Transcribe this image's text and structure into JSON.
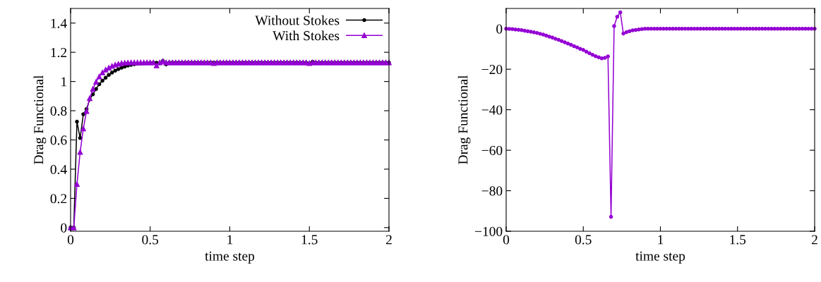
{
  "chart_data": [
    {
      "type": "line",
      "xlabel": "time step",
      "ylabel": "Drag Functional",
      "xlim": [
        0,
        2
      ],
      "ylim": [
        -0.025,
        1.5
      ],
      "yticks": [
        0,
        0.2,
        0.4,
        0.6,
        0.8,
        1,
        1.2,
        1.4
      ],
      "grid": false,
      "legend": "top right",
      "xticks": [
        0,
        0.5,
        1,
        1.5,
        2
      ],
      "x": [
        0,
        0.02,
        0.04,
        0.06,
        0.08,
        0.1,
        0.12,
        0.14,
        0.16,
        0.18,
        0.2,
        0.22,
        0.24,
        0.26,
        0.28,
        0.3,
        0.32,
        0.34,
        0.36,
        0.38,
        0.4,
        0.42,
        0.44,
        0.46,
        0.48,
        0.5,
        0.52,
        0.54,
        0.56,
        0.58,
        0.6,
        0.62,
        0.64,
        0.66,
        0.68,
        0.7,
        0.72,
        0.74,
        0.76,
        0.78,
        0.8,
        0.82,
        0.84,
        0.86,
        0.88,
        0.9,
        0.92,
        0.94,
        0.96,
        0.98,
        1,
        1.02,
        1.04,
        1.06,
        1.08,
        1.1,
        1.12,
        1.14,
        1.16,
        1.18,
        1.2,
        1.22,
        1.24,
        1.26,
        1.28,
        1.3,
        1.32,
        1.34,
        1.36,
        1.38,
        1.4,
        1.42,
        1.44,
        1.46,
        1.48,
        1.5,
        1.52,
        1.54,
        1.56,
        1.58,
        1.6,
        1.62,
        1.64,
        1.66,
        1.68,
        1.7,
        1.72,
        1.74,
        1.76,
        1.78,
        1.8,
        1.82,
        1.84,
        1.86,
        1.88,
        1.9,
        1.92,
        1.94,
        1.96,
        1.98,
        2
      ],
      "series": [
        {
          "name": "Without Stokes",
          "color": "#000000",
          "marker": "circle",
          "line_style": "solid",
          "values": [
            0,
            0,
            0.725,
            0.613,
            0.776,
            0.811,
            0.877,
            0.912,
            0.949,
            0.981,
            1.005,
            1.026,
            1.045,
            1.061,
            1.074,
            1.085,
            1.094,
            1.102,
            1.109,
            1.114,
            1.118,
            1.122,
            1.123,
            1.125,
            1.126,
            1.127,
            1.128,
            1.128,
            1.125,
            1.141,
            1.117,
            1.13,
            1.13,
            1.13,
            1.13,
            1.13,
            1.13,
            1.13,
            1.13,
            1.13,
            1.13,
            1.13,
            1.13,
            1.13,
            1.13,
            1.13,
            1.13,
            1.13,
            1.13,
            1.13,
            1.13,
            1.13,
            1.13,
            1.13,
            1.13,
            1.13,
            1.13,
            1.13,
            1.13,
            1.13,
            1.13,
            1.13,
            1.13,
            1.13,
            1.13,
            1.13,
            1.13,
            1.13,
            1.13,
            1.13,
            1.13,
            1.13,
            1.13,
            1.13,
            1.13,
            1.125,
            1.135,
            1.13,
            1.13,
            1.13,
            1.13,
            1.13,
            1.13,
            1.13,
            1.13,
            1.13,
            1.13,
            1.13,
            1.13,
            1.13,
            1.13,
            1.13,
            1.13,
            1.13,
            1.13,
            1.13,
            1.13,
            1.13,
            1.13,
            1.13,
            1.13
          ]
        },
        {
          "name": "With Stokes",
          "color": "#9400d3",
          "marker": "triangle",
          "line_style": "solid",
          "values": [
            0,
            0,
            0.298,
            0.517,
            0.677,
            0.797,
            0.885,
            0.949,
            0.997,
            1.034,
            1.061,
            1.08,
            1.094,
            1.106,
            1.114,
            1.12,
            1.125,
            1.128,
            1.129,
            1.13,
            1.13,
            1.13,
            1.13,
            1.13,
            1.13,
            1.13,
            1.13,
            1.109,
            1.13,
            1.138,
            1.13,
            1.13,
            1.13,
            1.13,
            1.13,
            1.13,
            1.13,
            1.13,
            1.13,
            1.13,
            1.13,
            1.13,
            1.13,
            1.13,
            1.13,
            1.125,
            1.13,
            1.13,
            1.13,
            1.13,
            1.13,
            1.13,
            1.13,
            1.13,
            1.13,
            1.13,
            1.13,
            1.13,
            1.13,
            1.13,
            1.13,
            1.13,
            1.13,
            1.13,
            1.13,
            1.13,
            1.13,
            1.13,
            1.13,
            1.13,
            1.13,
            1.13,
            1.13,
            1.13,
            1.13,
            1.125,
            1.13,
            1.13,
            1.13,
            1.13,
            1.13,
            1.13,
            1.13,
            1.13,
            1.13,
            1.13,
            1.13,
            1.13,
            1.13,
            1.13,
            1.13,
            1.13,
            1.13,
            1.13,
            1.13,
            1.13,
            1.13,
            1.13,
            1.13,
            1.13,
            1.13
          ]
        }
      ]
    },
    {
      "type": "line",
      "xlabel": "time step",
      "ylabel": "Drag Functional",
      "xlim": [
        0,
        2
      ],
      "xticks": [
        0,
        0.5,
        1,
        1.5,
        2
      ],
      "ylim": [
        -100,
        10
      ],
      "yticks": [
        {
          "value": -100,
          "label": "−100"
        },
        {
          "value": -80,
          "label": "−80"
        },
        {
          "value": -60,
          "label": "−60"
        },
        {
          "value": -40,
          "label": "−40"
        },
        {
          "value": -20,
          "label": "−20"
        },
        0
      ],
      "grid": false,
      "x": [
        0,
        0.02,
        0.04,
        0.06,
        0.08,
        0.1,
        0.12,
        0.14,
        0.16,
        0.18,
        0.2,
        0.22,
        0.24,
        0.26,
        0.28,
        0.3,
        0.32,
        0.34,
        0.36,
        0.38,
        0.4,
        0.42,
        0.44,
        0.46,
        0.48,
        0.5,
        0.52,
        0.54,
        0.56,
        0.58,
        0.6,
        0.62,
        0.64,
        0.66,
        0.68,
        0.7,
        0.72,
        0.74,
        0.76,
        0.78,
        0.8,
        0.82,
        0.84,
        0.86,
        0.88,
        0.9,
        0.92,
        0.94,
        0.96,
        0.98,
        1,
        1.02,
        1.04,
        1.06,
        1.08,
        1.1,
        1.12,
        1.14,
        1.16,
        1.18,
        1.2,
        1.22,
        1.24,
        1.26,
        1.28,
        1.3,
        1.32,
        1.34,
        1.36,
        1.38,
        1.4,
        1.42,
        1.44,
        1.46,
        1.48,
        1.5,
        1.52,
        1.54,
        1.56,
        1.58,
        1.6,
        1.62,
        1.64,
        1.66,
        1.68,
        1.7,
        1.72,
        1.74,
        1.76,
        1.78,
        1.8,
        1.82,
        1.84,
        1.86,
        1.88,
        1.9,
        1.92,
        1.94,
        1.96,
        1.98,
        2
      ],
      "series": [
        {
          "color": "#9400d3",
          "marker": "circle",
          "line_style": "solid",
          "values": [
            0,
            -0.1,
            -0.2,
            -0.4,
            -0.5,
            -0.7,
            -1.0,
            -1.2,
            -1.5,
            -1.8,
            -2.1,
            -2.5,
            -2.9,
            -3.4,
            -3.9,
            -4.4,
            -5.0,
            -5.5,
            -6.1,
            -6.7,
            -7.3,
            -7.9,
            -8.6,
            -9.2,
            -9.9,
            -10.5,
            -11.3,
            -12.1,
            -12.9,
            -13.6,
            -14.1,
            -14.6,
            -14.4,
            -13.7,
            -92.9,
            1.3,
            5.9,
            8.1,
            -2.4,
            -1.7,
            -1.2,
            -0.8,
            -0.6,
            -0.4,
            -0.2,
            0,
            0,
            0,
            0,
            0,
            0,
            0,
            0,
            0,
            0,
            0,
            0,
            0,
            0,
            0,
            0,
            0,
            0,
            0,
            0,
            0,
            0,
            0,
            0,
            0,
            0,
            0,
            0,
            0,
            0,
            0,
            0,
            0,
            0,
            0,
            0,
            0,
            0,
            0,
            0,
            0,
            0,
            0,
            0,
            0,
            0,
            0,
            0,
            0,
            0,
            0,
            0,
            0,
            0,
            0,
            0
          ]
        }
      ]
    }
  ]
}
